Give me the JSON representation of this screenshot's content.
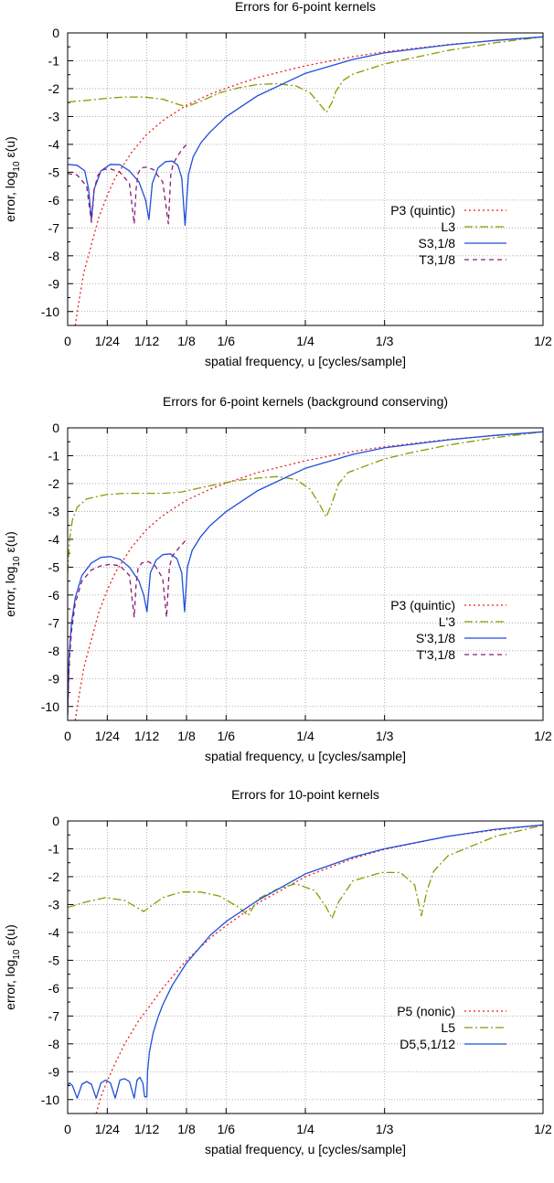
{
  "colors": {
    "red": "#ee1d1d",
    "olive": "#8a9a00",
    "blue": "#1f4fdb",
    "purple": "#8b1a74"
  },
  "chart_data": [
    {
      "type": "line",
      "title": "Errors for 6-point kernels",
      "xlabel": "spatial frequency, u [cycles/sample]",
      "ylabel": "error, log10 ε(u)",
      "ylabel_main": "error, log",
      "ylabel_sub": "10",
      "ylabel_tail": " ε(u)",
      "xlim": [
        0,
        0.5
      ],
      "ylim": [
        -10.5,
        0
      ],
      "grid": true,
      "legend_position": "right-middle",
      "x_ticks": [
        {
          "value": 0,
          "label": "0"
        },
        {
          "value": 0.0416667,
          "label": "1/24"
        },
        {
          "value": 0.0833333,
          "label": "1/12"
        },
        {
          "value": 0.125,
          "label": "1/8"
        },
        {
          "value": 0.1666667,
          "label": "1/6"
        },
        {
          "value": 0.25,
          "label": "1/4"
        },
        {
          "value": 0.3333333,
          "label": "1/3"
        },
        {
          "value": 0.5,
          "label": "1/2"
        }
      ],
      "y_ticks": [
        {
          "value": 0,
          "label": "0"
        },
        {
          "value": -1,
          "label": "-1"
        },
        {
          "value": -2,
          "label": "-2"
        },
        {
          "value": -3,
          "label": "-3"
        },
        {
          "value": -4,
          "label": "-4"
        },
        {
          "value": -5,
          "label": "-5"
        },
        {
          "value": -6,
          "label": "-6"
        },
        {
          "value": -7,
          "label": "-7"
        },
        {
          "value": -8,
          "label": "-8"
        },
        {
          "value": -9,
          "label": "-9"
        },
        {
          "value": -10,
          "label": "-10"
        }
      ],
      "series": [
        {
          "name": "P3 (quintic)",
          "color": "red",
          "dash": "2,3",
          "x": [
            0.008,
            0.012,
            0.017,
            0.025,
            0.033,
            0.042,
            0.05,
            0.067,
            0.083,
            0.1,
            0.125,
            0.15,
            0.167,
            0.2,
            0.25,
            0.3,
            0.333,
            0.4,
            0.45,
            0.5
          ],
          "y": [
            -10.5,
            -9.6,
            -8.6,
            -7.6,
            -6.6,
            -5.8,
            -5.2,
            -4.3,
            -3.65,
            -3.15,
            -2.6,
            -2.2,
            -1.98,
            -1.6,
            -1.18,
            -0.85,
            -0.68,
            -0.42,
            -0.27,
            -0.14
          ]
        },
        {
          "name": "L3",
          "color": "olive",
          "dash": "9,3,2,3",
          "x": [
            0,
            0.02,
            0.04,
            0.06,
            0.08,
            0.1,
            0.115,
            0.125,
            0.14,
            0.16,
            0.18,
            0.2,
            0.22,
            0.24,
            0.255,
            0.265,
            0.272,
            0.278,
            0.282,
            0.29,
            0.3,
            0.333,
            0.36,
            0.4,
            0.45,
            0.5
          ],
          "y": [
            -2.48,
            -2.42,
            -2.35,
            -2.3,
            -2.3,
            -2.38,
            -2.55,
            -2.65,
            -2.45,
            -2.15,
            -1.97,
            -1.85,
            -1.82,
            -1.9,
            -2.15,
            -2.55,
            -2.85,
            -2.5,
            -2.1,
            -1.7,
            -1.48,
            -1.12,
            -0.92,
            -0.63,
            -0.35,
            -0.14
          ]
        },
        {
          "name": "S3,1/8",
          "color": "blue",
          "dash": "",
          "x": [
            0,
            0.01,
            0.018,
            0.022,
            0.025,
            0.028,
            0.035,
            0.045,
            0.055,
            0.065,
            0.075,
            0.082,
            0.0855,
            0.089,
            0.095,
            0.103,
            0.11,
            0.116,
            0.12,
            0.1235,
            0.127,
            0.132,
            0.14,
            0.15,
            0.167,
            0.2,
            0.25,
            0.3,
            0.333,
            0.4,
            0.45,
            0.5
          ],
          "y": [
            -4.72,
            -4.75,
            -4.95,
            -5.6,
            -6.7,
            -5.6,
            -4.95,
            -4.72,
            -4.73,
            -4.95,
            -5.35,
            -6.0,
            -6.7,
            -5.4,
            -4.85,
            -4.62,
            -4.6,
            -4.75,
            -5.2,
            -6.9,
            -5.1,
            -4.45,
            -3.95,
            -3.55,
            -3.0,
            -2.25,
            -1.45,
            -0.95,
            -0.72,
            -0.43,
            -0.27,
            -0.14
          ]
        },
        {
          "name": "T3,1/8",
          "color": "purple",
          "dash": "5,4",
          "x": [
            0,
            0.01,
            0.02,
            0.025,
            0.028,
            0.032,
            0.038,
            0.045,
            0.055,
            0.065,
            0.07,
            0.072,
            0.074,
            0.077,
            0.082,
            0.09,
            0.1,
            0.106,
            0.1085,
            0.111,
            0.116,
            0.12,
            0.125
          ],
          "y": [
            -5.05,
            -5.1,
            -5.5,
            -6.8,
            -5.6,
            -5.1,
            -4.9,
            -4.88,
            -5.0,
            -5.4,
            -6.85,
            -5.6,
            -5.05,
            -4.85,
            -4.82,
            -4.9,
            -5.35,
            -6.85,
            -5.1,
            -4.7,
            -4.4,
            -4.2,
            -4.0
          ]
        }
      ]
    },
    {
      "type": "line",
      "title": "Errors for 6-point kernels (background conserving)",
      "xlabel": "spatial frequency, u [cycles/sample]",
      "ylabel": "error, log10 ε(u)",
      "ylabel_main": "error, log",
      "ylabel_sub": "10",
      "ylabel_tail": " ε(u)",
      "xlim": [
        0,
        0.5
      ],
      "ylim": [
        -10.5,
        0
      ],
      "grid": true,
      "legend_position": "right-middle",
      "x_ticks": [
        {
          "value": 0,
          "label": "0"
        },
        {
          "value": 0.0416667,
          "label": "1/24"
        },
        {
          "value": 0.0833333,
          "label": "1/12"
        },
        {
          "value": 0.125,
          "label": "1/8"
        },
        {
          "value": 0.1666667,
          "label": "1/6"
        },
        {
          "value": 0.25,
          "label": "1/4"
        },
        {
          "value": 0.3333333,
          "label": "1/3"
        },
        {
          "value": 0.5,
          "label": "1/2"
        }
      ],
      "y_ticks": [
        {
          "value": 0,
          "label": "0"
        },
        {
          "value": -1,
          "label": "-1"
        },
        {
          "value": -2,
          "label": "-2"
        },
        {
          "value": -3,
          "label": "-3"
        },
        {
          "value": -4,
          "label": "-4"
        },
        {
          "value": -5,
          "label": "-5"
        },
        {
          "value": -6,
          "label": "-6"
        },
        {
          "value": -7,
          "label": "-7"
        },
        {
          "value": -8,
          "label": "-8"
        },
        {
          "value": -9,
          "label": "-9"
        },
        {
          "value": -10,
          "label": "-10"
        }
      ],
      "series": [
        {
          "name": "P3 (quintic)",
          "color": "red",
          "dash": "2,3",
          "x": [
            0.008,
            0.012,
            0.017,
            0.025,
            0.033,
            0.042,
            0.05,
            0.067,
            0.083,
            0.1,
            0.125,
            0.15,
            0.167,
            0.2,
            0.25,
            0.3,
            0.333,
            0.4,
            0.45,
            0.5
          ],
          "y": [
            -10.5,
            -9.6,
            -8.6,
            -7.6,
            -6.6,
            -5.8,
            -5.2,
            -4.3,
            -3.65,
            -3.15,
            -2.6,
            -2.2,
            -1.98,
            -1.6,
            -1.18,
            -0.85,
            -0.68,
            -0.42,
            -0.27,
            -0.14
          ]
        },
        {
          "name": "L'3",
          "color": "olive",
          "dash": "9,3,2,3",
          "x": [
            0,
            0.002,
            0.005,
            0.01,
            0.02,
            0.04,
            0.06,
            0.08,
            0.1,
            0.12,
            0.14,
            0.16,
            0.18,
            0.2,
            0.22,
            0.24,
            0.255,
            0.265,
            0.272,
            0.278,
            0.285,
            0.295,
            0.333,
            0.36,
            0.4,
            0.45,
            0.5
          ],
          "y": [
            -5.2,
            -4.0,
            -3.3,
            -2.85,
            -2.55,
            -2.4,
            -2.35,
            -2.35,
            -2.35,
            -2.3,
            -2.15,
            -2.0,
            -1.88,
            -1.8,
            -1.75,
            -1.85,
            -2.2,
            -2.75,
            -3.2,
            -2.7,
            -2.0,
            -1.6,
            -1.12,
            -0.9,
            -0.62,
            -0.35,
            -0.14
          ]
        },
        {
          "name": "S'3,1/8",
          "color": "blue",
          "dash": "",
          "x": [
            0,
            0.0015,
            0.004,
            0.008,
            0.015,
            0.025,
            0.035,
            0.045,
            0.055,
            0.065,
            0.075,
            0.08,
            0.0835,
            0.087,
            0.093,
            0.1,
            0.108,
            0.115,
            0.12,
            0.123,
            0.126,
            0.131,
            0.14,
            0.15,
            0.167,
            0.2,
            0.25,
            0.3,
            0.333,
            0.4,
            0.45,
            0.5
          ],
          "y": [
            -10.3,
            -8.2,
            -7.0,
            -6.1,
            -5.3,
            -4.85,
            -4.65,
            -4.62,
            -4.72,
            -5.0,
            -5.5,
            -6.0,
            -6.6,
            -5.2,
            -4.75,
            -4.55,
            -4.52,
            -4.7,
            -5.2,
            -6.6,
            -5.0,
            -4.4,
            -3.9,
            -3.5,
            -3.0,
            -2.25,
            -1.45,
            -0.95,
            -0.72,
            -0.43,
            -0.27,
            -0.14
          ]
        },
        {
          "name": "T'3,1/8",
          "color": "purple",
          "dash": "5,4",
          "x": [
            0,
            0.0015,
            0.004,
            0.008,
            0.015,
            0.025,
            0.035,
            0.045,
            0.055,
            0.065,
            0.07,
            0.072,
            0.074,
            0.078,
            0.085,
            0.092,
            0.1,
            0.104,
            0.107,
            0.11,
            0.116,
            0.12,
            0.125
          ],
          "y": [
            -10.3,
            -8.5,
            -7.3,
            -6.3,
            -5.5,
            -5.1,
            -4.95,
            -4.9,
            -4.95,
            -5.3,
            -6.8,
            -5.6,
            -5.05,
            -4.85,
            -4.8,
            -4.95,
            -5.4,
            -6.8,
            -5.0,
            -4.6,
            -4.35,
            -4.2,
            -4.0
          ]
        }
      ]
    },
    {
      "type": "line",
      "title": "Errors for 10-point kernels",
      "xlabel": "spatial frequency, u [cycles/sample]",
      "ylabel": "error, log10 ε(u)",
      "ylabel_main": "error, log",
      "ylabel_sub": "10",
      "ylabel_tail": " ε(u)",
      "xlim": [
        0,
        0.5
      ],
      "ylim": [
        -10.5,
        0
      ],
      "grid": true,
      "legend_position": "right-middle",
      "x_ticks": [
        {
          "value": 0,
          "label": "0"
        },
        {
          "value": 0.0416667,
          "label": "1/24"
        },
        {
          "value": 0.0833333,
          "label": "1/12"
        },
        {
          "value": 0.125,
          "label": "1/8"
        },
        {
          "value": 0.1666667,
          "label": "1/6"
        },
        {
          "value": 0.25,
          "label": "1/4"
        },
        {
          "value": 0.3333333,
          "label": "1/3"
        },
        {
          "value": 0.5,
          "label": "1/2"
        }
      ],
      "y_ticks": [
        {
          "value": 0,
          "label": "0"
        },
        {
          "value": -1,
          "label": "-1"
        },
        {
          "value": -2,
          "label": "-2"
        },
        {
          "value": -3,
          "label": "-3"
        },
        {
          "value": -4,
          "label": "-4"
        },
        {
          "value": -5,
          "label": "-5"
        },
        {
          "value": -6,
          "label": "-6"
        },
        {
          "value": -7,
          "label": "-7"
        },
        {
          "value": -8,
          "label": "-8"
        },
        {
          "value": -9,
          "label": "-9"
        },
        {
          "value": -10,
          "label": "-10"
        }
      ],
      "series": [
        {
          "name": "P5 (nonic)",
          "color": "red",
          "dash": "2,3",
          "x": [
            0.03,
            0.035,
            0.042,
            0.05,
            0.06,
            0.075,
            0.083,
            0.1,
            0.125,
            0.15,
            0.167,
            0.2,
            0.25,
            0.3,
            0.333,
            0.4,
            0.45,
            0.5
          ],
          "y": [
            -10.5,
            -9.9,
            -9.3,
            -8.7,
            -8.0,
            -7.15,
            -6.8,
            -6.0,
            -5.0,
            -4.2,
            -3.75,
            -2.95,
            -2.0,
            -1.35,
            -1.02,
            -0.55,
            -0.32,
            -0.14
          ]
        },
        {
          "name": "L5",
          "color": "olive",
          "dash": "9,3,2,3",
          "x": [
            0,
            0.02,
            0.04,
            0.06,
            0.07,
            0.08,
            0.09,
            0.1,
            0.12,
            0.14,
            0.16,
            0.18,
            0.19,
            0.195,
            0.2,
            0.22,
            0.24,
            0.26,
            0.272,
            0.278,
            0.285,
            0.3,
            0.33,
            0.35,
            0.365,
            0.372,
            0.378,
            0.385,
            0.4,
            0.45,
            0.5
          ],
          "y": [
            -3.1,
            -2.9,
            -2.75,
            -2.85,
            -3.05,
            -3.25,
            -3.0,
            -2.75,
            -2.55,
            -2.55,
            -2.7,
            -3.1,
            -3.4,
            -3.1,
            -2.8,
            -2.45,
            -2.25,
            -2.5,
            -3.1,
            -3.5,
            -2.9,
            -2.15,
            -1.85,
            -1.85,
            -2.3,
            -3.4,
            -2.5,
            -1.8,
            -1.25,
            -0.55,
            -0.15
          ]
        },
        {
          "name": "D5,5,1/12",
          "color": "blue",
          "dash": "",
          "x": [
            0,
            0.002,
            0.005,
            0.01,
            0.015,
            0.02,
            0.025,
            0.03,
            0.035,
            0.04,
            0.045,
            0.05,
            0.055,
            0.06,
            0.065,
            0.07,
            0.073,
            0.076,
            0.079,
            0.081,
            0.0833,
            0.084,
            0.086,
            0.09,
            0.095,
            0.1,
            0.11,
            0.125,
            0.15,
            0.167,
            0.2,
            0.25,
            0.3,
            0.333,
            0.4,
            0.45,
            0.5
          ],
          "y": [
            -9.5,
            -9.4,
            -9.5,
            -9.95,
            -9.45,
            -9.35,
            -9.45,
            -9.95,
            -9.4,
            -9.3,
            -9.4,
            -9.95,
            -9.3,
            -9.25,
            -9.35,
            -9.95,
            -9.3,
            -9.2,
            -9.4,
            -9.9,
            -9.9,
            -9.0,
            -8.3,
            -7.6,
            -7.05,
            -6.6,
            -5.9,
            -5.1,
            -4.1,
            -3.6,
            -2.85,
            -1.9,
            -1.3,
            -1.0,
            -0.55,
            -0.3,
            -0.14
          ]
        }
      ]
    }
  ]
}
